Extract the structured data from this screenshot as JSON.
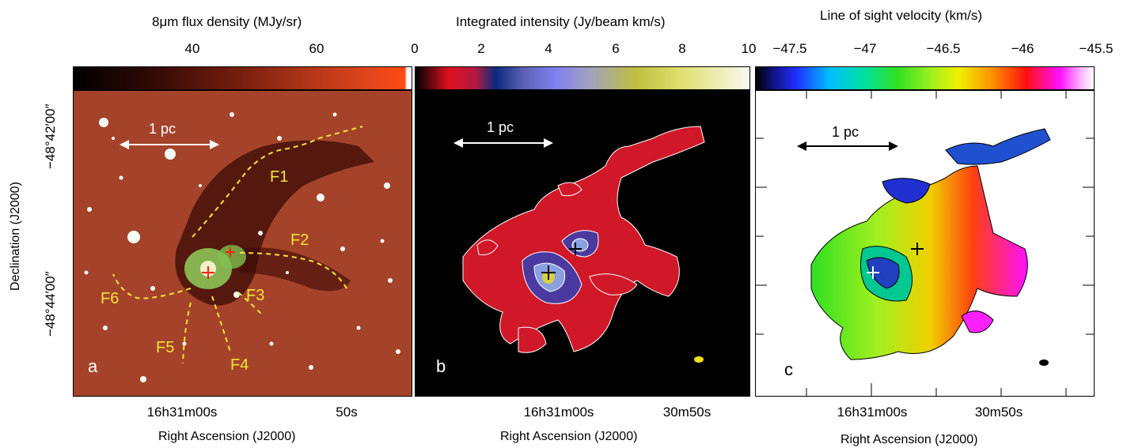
{
  "panel_a": {
    "colorbar_title": "8μm flux density (MJy/sr)",
    "colorbar_ticks": [
      "40",
      "60"
    ],
    "scale_label": "1 pc",
    "filaments": [
      "F1",
      "F2",
      "F3",
      "F4",
      "F5",
      "F6"
    ],
    "panel_letter": "a",
    "dec_ticks": [
      "−48°42′00″",
      "−48°44′00″"
    ],
    "ra_ticks": [
      "16h31m00s",
      "50s"
    ]
  },
  "panel_b": {
    "colorbar_title": "Integrated intensity (Jy/beam km/s)",
    "colorbar_ticks": [
      "0",
      "2",
      "4",
      "6",
      "8",
      "10"
    ],
    "scale_label": "1 pc",
    "panel_letter": "b",
    "ra_ticks": [
      "16h31m00s",
      "30m50s"
    ]
  },
  "panel_c": {
    "colorbar_title": "Line of sight velocity (km/s)",
    "colorbar_ticks": [
      "−47.5",
      "−47",
      "−46.5",
      "−46",
      "−45.5"
    ],
    "scale_label": "1 pc",
    "panel_letter": "c",
    "ra_ticks": [
      "16h31m00s",
      "30m50s"
    ]
  },
  "axes": {
    "ylabel": "Declination (J2000)",
    "xlabel": "Right Ascension (J2000)"
  },
  "colors": {
    "panel_a_bg": "#a5432a",
    "filament_line": "#f5e23a",
    "panel_b_bg": "#000000",
    "panel_c_bg": "#ffffff"
  }
}
